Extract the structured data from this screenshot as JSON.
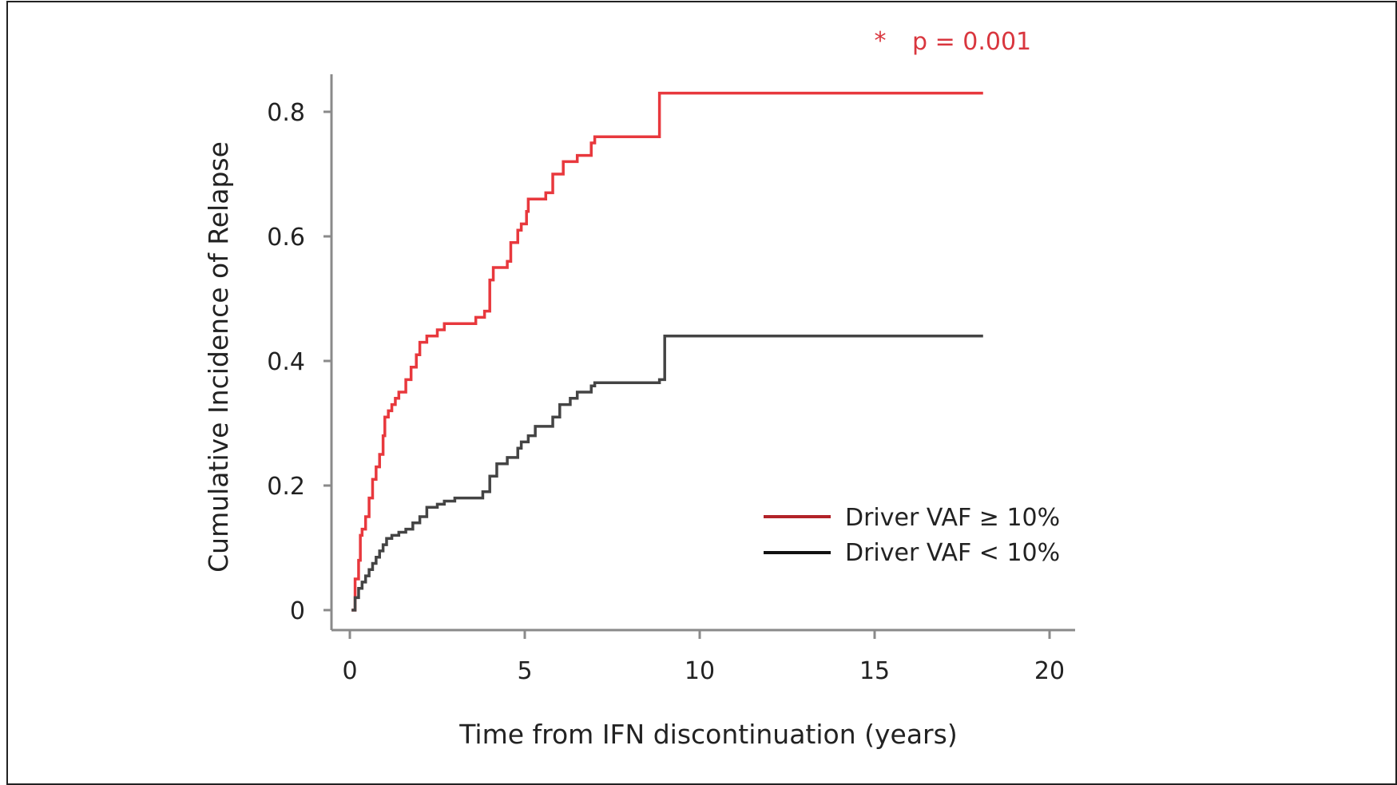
{
  "chart_data": {
    "type": "line",
    "step": true,
    "title": "",
    "xlabel": "Time from IFN discontinuation (years)",
    "ylabel": "Cumulative Incidence of Relapse",
    "xlim": [
      0,
      20
    ],
    "ylim": [
      0,
      0.85
    ],
    "xticks": [
      0,
      5,
      10,
      15,
      20
    ],
    "xtick_labels": [
      "0",
      "5",
      "10",
      "15",
      "20"
    ],
    "yticks": [
      0,
      0.2,
      0.4,
      0.6,
      0.8
    ],
    "ytick_labels": [
      "0",
      "0.2",
      "0.4",
      "0.6",
      "0.8"
    ],
    "grid": false,
    "legend_position": "bottom-right",
    "annotation": {
      "marker": "*",
      "text": "p = 0.001",
      "color": "#d9363e"
    },
    "series": [
      {
        "name": "Driver VAF ≥ 10%",
        "color": "#e8383d",
        "legend_color": "#b22228",
        "x": [
          0.05,
          0.15,
          0.25,
          0.3,
          0.35,
          0.45,
          0.55,
          0.65,
          0.75,
          0.85,
          0.95,
          1.0,
          1.1,
          1.2,
          1.3,
          1.4,
          1.6,
          1.75,
          1.9,
          2.0,
          2.1,
          2.2,
          2.5,
          2.7,
          3.0,
          3.3,
          3.6,
          3.85,
          4.0,
          4.1,
          4.5,
          4.6,
          4.8,
          4.9,
          5.05,
          5.1,
          5.6,
          5.8,
          6.1,
          6.5,
          6.9,
          7.0,
          8.0,
          8.85,
          9.0,
          18.1
        ],
        "y": [
          0.0,
          0.05,
          0.08,
          0.12,
          0.13,
          0.15,
          0.18,
          0.21,
          0.23,
          0.25,
          0.28,
          0.31,
          0.32,
          0.33,
          0.34,
          0.35,
          0.37,
          0.39,
          0.41,
          0.43,
          0.43,
          0.44,
          0.45,
          0.46,
          0.46,
          0.46,
          0.47,
          0.48,
          0.53,
          0.55,
          0.56,
          0.59,
          0.61,
          0.62,
          0.64,
          0.66,
          0.67,
          0.7,
          0.72,
          0.73,
          0.75,
          0.76,
          0.76,
          0.83,
          0.83,
          0.83
        ]
      },
      {
        "name": "Driver VAF < 10%",
        "color": "#444444",
        "legend_color": "#111111",
        "x": [
          0.05,
          0.15,
          0.25,
          0.35,
          0.45,
          0.55,
          0.65,
          0.75,
          0.85,
          0.95,
          1.05,
          1.2,
          1.4,
          1.6,
          1.8,
          2.0,
          2.2,
          2.5,
          2.7,
          3.0,
          3.5,
          3.8,
          4.0,
          4.2,
          4.5,
          4.8,
          4.9,
          5.1,
          5.3,
          5.8,
          6.0,
          6.3,
          6.5,
          6.9,
          7.0,
          8.0,
          8.85,
          9.0,
          18.1
        ],
        "y": [
          0.0,
          0.02,
          0.035,
          0.045,
          0.055,
          0.065,
          0.075,
          0.085,
          0.095,
          0.105,
          0.115,
          0.12,
          0.125,
          0.13,
          0.14,
          0.15,
          0.165,
          0.17,
          0.175,
          0.18,
          0.18,
          0.19,
          0.215,
          0.235,
          0.245,
          0.26,
          0.27,
          0.28,
          0.295,
          0.31,
          0.33,
          0.34,
          0.35,
          0.36,
          0.365,
          0.365,
          0.37,
          0.44,
          0.44
        ]
      }
    ]
  }
}
